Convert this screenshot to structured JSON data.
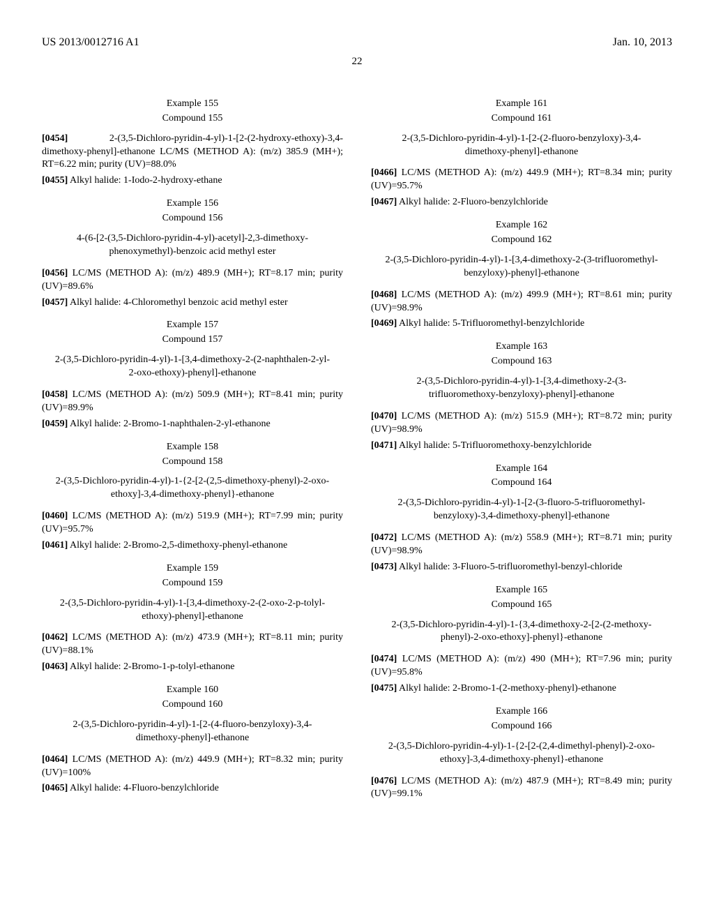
{
  "header": {
    "publication": "US 2013/0012716 A1",
    "date": "Jan. 10, 2013"
  },
  "page_number": "22",
  "left": {
    "items": [
      {
        "example": "Example 155",
        "compound": "Compound 155",
        "title_inline_para_num": "[0454]",
        "title_inline": "2-(3,5-Dichloro-pyridin-4-yl)-1-[2-(2-hydroxy-ethoxy)-3,4-dimethoxy-phenyl]-ethanone        LC/MS (METHOD A): (m/z) 385.9 (MH+); RT=6.22 min; purity (UV)=88.0%",
        "paras": [
          {
            "num": "[0455]",
            "text": "Alkyl halide: 1-Iodo-2-hydroxy-ethane"
          }
        ]
      },
      {
        "example": "Example 156",
        "compound": "Compound 156",
        "title": "4-(6-[2-(3,5-Dichloro-pyridin-4-yl)-acetyl]-2,3-dimethoxy-phenoxymethyl)-benzoic acid methyl ester",
        "paras": [
          {
            "num": "[0456]",
            "text": "LC/MS (METHOD A): (m/z) 489.9 (MH+); RT=8.17 min; purity (UV)=89.6%"
          },
          {
            "num": "[0457]",
            "text": "Alkyl halide: 4-Chloromethyl benzoic acid methyl ester"
          }
        ]
      },
      {
        "example": "Example 157",
        "compound": "Compound 157",
        "title": "2-(3,5-Dichloro-pyridin-4-yl)-1-[3,4-dimethoxy-2-(2-naphthalen-2-yl-2-oxo-ethoxy)-phenyl]-ethanone",
        "paras": [
          {
            "num": "[0458]",
            "text": "LC/MS (METHOD A): (m/z) 509.9 (MH+); RT=8.41 min; purity (UV)=89.9%"
          },
          {
            "num": "[0459]",
            "text": "Alkyl halide: 2-Bromo-1-naphthalen-2-yl-ethanone"
          }
        ]
      },
      {
        "example": "Example 158",
        "compound": "Compound 158",
        "title": "2-(3,5-Dichloro-pyridin-4-yl)-1-{2-[2-(2,5-dimethoxy-phenyl)-2-oxo-ethoxy]-3,4-dimethoxy-phenyl}-ethanone",
        "paras": [
          {
            "num": "[0460]",
            "text": "LC/MS (METHOD A): (m/z) 519.9 (MH+); RT=7.99 min; purity (UV)=95.7%"
          },
          {
            "num": "[0461]",
            "text": "Alkyl halide: 2-Bromo-2,5-dimethoxy-phenyl-ethanone"
          }
        ]
      },
      {
        "example": "Example 159",
        "compound": "Compound 159",
        "title": "2-(3,5-Dichloro-pyridin-4-yl)-1-[3,4-dimethoxy-2-(2-oxo-2-p-tolyl-ethoxy)-phenyl]-ethanone",
        "paras": [
          {
            "num": "[0462]",
            "text": "LC/MS (METHOD A): (m/z) 473.9 (MH+); RT=8.11 min; purity (UV)=88.1%"
          },
          {
            "num": "[0463]",
            "text": "Alkyl halide: 2-Bromo-1-p-tolyl-ethanone"
          }
        ]
      },
      {
        "example": "Example 160",
        "compound": "Compound 160",
        "title": "2-(3,5-Dichloro-pyridin-4-yl)-1-[2-(4-fluoro-benzyloxy)-3,4-dimethoxy-phenyl]-ethanone",
        "paras": [
          {
            "num": "[0464]",
            "text": "LC/MS (METHOD A): (m/z) 449.9 (MH+); RT=8.32 min; purity (UV)=100%"
          },
          {
            "num": "[0465]",
            "text": "Alkyl halide: 4-Fluoro-benzylchloride"
          }
        ]
      }
    ]
  },
  "right": {
    "items": [
      {
        "example": "Example 161",
        "compound": "Compound 161",
        "title": "2-(3,5-Dichloro-pyridin-4-yl)-1-[2-(2-fluoro-benzyloxy)-3,4-dimethoxy-phenyl]-ethanone",
        "paras": [
          {
            "num": "[0466]",
            "text": "LC/MS (METHOD A): (m/z) 449.9 (MH+); RT=8.34 min; purity (UV)=95.7%"
          },
          {
            "num": "[0467]",
            "text": "Alkyl halide: 2-Fluoro-benzylchloride"
          }
        ]
      },
      {
        "example": "Example 162",
        "compound": "Compound 162",
        "title": "2-(3,5-Dichloro-pyridin-4-yl)-1-[3,4-dimethoxy-2-(3-trifluoromethyl-benzyloxy)-phenyl]-ethanone",
        "paras": [
          {
            "num": "[0468]",
            "text": "LC/MS (METHOD A): (m/z) 499.9 (MH+); RT=8.61 min; purity (UV)=98.9%"
          },
          {
            "num": "[0469]",
            "text": "Alkyl halide: 5-Trifluoromethyl-benzylchloride"
          }
        ]
      },
      {
        "example": "Example 163",
        "compound": "Compound 163",
        "title": "2-(3,5-Dichloro-pyridin-4-yl)-1-[3,4-dimethoxy-2-(3-trifluoromethoxy-benzyloxy)-phenyl]-ethanone",
        "paras": [
          {
            "num": "[0470]",
            "text": "LC/MS (METHOD A): (m/z) 515.9 (MH+); RT=8.72 min; purity (UV)=98.9%"
          },
          {
            "num": "[0471]",
            "text": "Alkyl halide: 5-Trifluoromethoxy-benzylchloride"
          }
        ]
      },
      {
        "example": "Example 164",
        "compound": "Compound 164",
        "title": "2-(3,5-Dichloro-pyridin-4-yl)-1-[2-(3-fluoro-5-trifluoromethyl-benzyloxy)-3,4-dimethoxy-phenyl]-ethanone",
        "paras": [
          {
            "num": "[0472]",
            "text": "LC/MS (METHOD A): (m/z) 558.9 (MH+); RT=8.71 min; purity (UV)=98.9%"
          },
          {
            "num": "[0473]",
            "text": "Alkyl halide: 3-Fluoro-5-trifluoromethyl-benzyl-chloride"
          }
        ]
      },
      {
        "example": "Example 165",
        "compound": "Compound 165",
        "title": "2-(3,5-Dichloro-pyridin-4-yl)-1-{3,4-dimethoxy-2-[2-(2-methoxy-phenyl)-2-oxo-ethoxy]-phenyl}-ethanone",
        "paras": [
          {
            "num": "[0474]",
            "text": "LC/MS (METHOD A): (m/z) 490 (MH+); RT=7.96 min; purity (UV)=95.8%"
          },
          {
            "num": "[0475]",
            "text": "Alkyl halide: 2-Bromo-1-(2-methoxy-phenyl)-ethanone"
          }
        ]
      },
      {
        "example": "Example 166",
        "compound": "Compound 166",
        "title": "2-(3,5-Dichloro-pyridin-4-yl)-1-{2-[2-(2,4-dimethyl-phenyl)-2-oxo-ethoxy]-3,4-dimethoxy-phenyl}-ethanone",
        "paras": [
          {
            "num": "[0476]",
            "text": "LC/MS (METHOD A): (m/z) 487.9 (MH+); RT=8.49 min; purity (UV)=99.1%"
          }
        ]
      }
    ]
  }
}
